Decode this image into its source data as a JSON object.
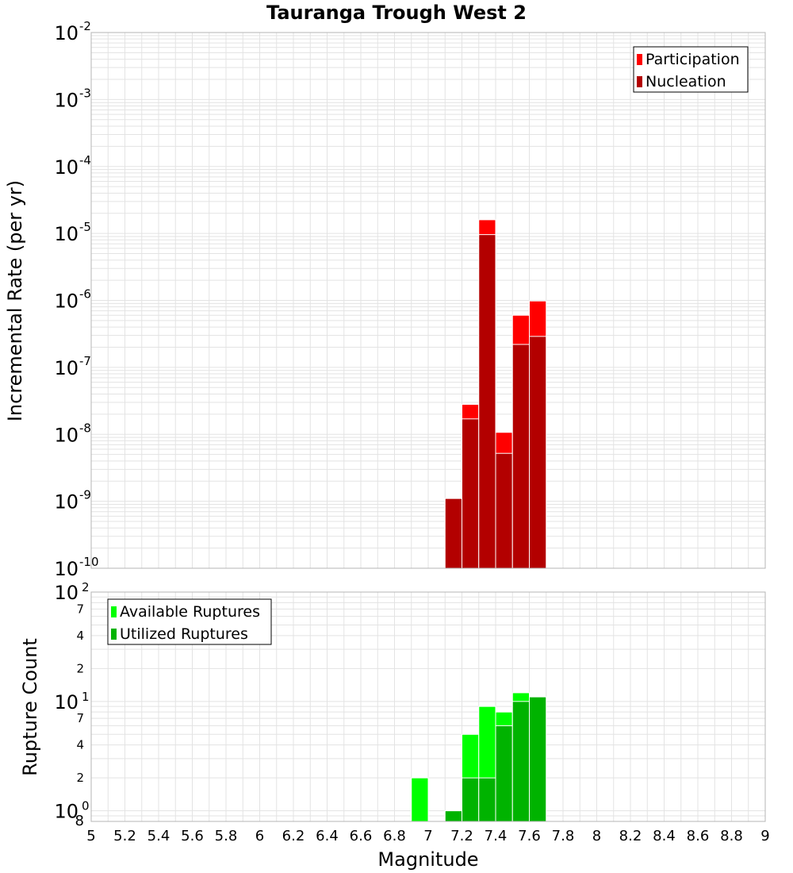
{
  "chart_data": [
    {
      "type": "bar",
      "title": "Tauranga Trough West 2",
      "ylabel": "Incremental Rate (per yr)",
      "xlabel": "",
      "y_scale": "log",
      "ylim": [
        1e-10,
        0.01
      ],
      "xlim": [
        5,
        9
      ],
      "bar_width": 0.1,
      "grid": true,
      "legend_position": "top-right",
      "y_ticks": [
        {
          "base": "10",
          "exp": "-10"
        },
        {
          "base": "10",
          "exp": "-9"
        },
        {
          "base": "10",
          "exp": "-8"
        },
        {
          "base": "10",
          "exp": "-7"
        },
        {
          "base": "10",
          "exp": "-6"
        },
        {
          "base": "10",
          "exp": "-5"
        },
        {
          "base": "10",
          "exp": "-4"
        },
        {
          "base": "10",
          "exp": "-3"
        },
        {
          "base": "10",
          "exp": "-2"
        }
      ],
      "series": [
        {
          "name": "Participation",
          "color": "#ff0000",
          "x": [
            7.15,
            7.25,
            7.35,
            7.45,
            7.55,
            7.65
          ],
          "values": [
            1.1e-09,
            2.8e-08,
            1.6e-05,
            1.07e-08,
            6e-07,
            9.8e-07
          ]
        },
        {
          "name": "Nucleation",
          "color": "#b30000",
          "x": [
            7.15,
            7.25,
            7.35,
            7.45,
            7.55,
            7.65
          ],
          "values": [
            1.1e-09,
            1.7e-08,
            9.6e-06,
            5.2e-09,
            2.2e-07,
            2.9e-07
          ]
        }
      ]
    },
    {
      "type": "bar",
      "title": "",
      "ylabel": "Rupture Count",
      "xlabel": "Magnitude",
      "y_scale": "log",
      "ylim": [
        0.8,
        100
      ],
      "xlim": [
        5,
        9
      ],
      "bar_width": 0.1,
      "grid": true,
      "legend_position": "top-left",
      "x_ticks": [
        "5",
        "5.2",
        "5.4",
        "5.6",
        "5.8",
        "6",
        "6.2",
        "6.4",
        "6.6",
        "6.8",
        "7",
        "7.2",
        "7.4",
        "7.6",
        "7.8",
        "8",
        "8.2",
        "8.4",
        "8.6",
        "8.8",
        "9"
      ],
      "y_major_ticks": [
        {
          "value": 1,
          "base": "10",
          "exp": "0"
        },
        {
          "value": 10,
          "base": "10",
          "exp": "1"
        },
        {
          "value": 100,
          "base": "10",
          "exp": "2"
        }
      ],
      "y_minor_labels": [
        {
          "value": 0.8,
          "label": "8"
        },
        {
          "value": 2,
          "label": "2"
        },
        {
          "value": 4,
          "label": "4"
        },
        {
          "value": 7,
          "label": "7"
        },
        {
          "value": 20,
          "label": "2"
        },
        {
          "value": 40,
          "label": "4"
        },
        {
          "value": 70,
          "label": "7"
        }
      ],
      "series": [
        {
          "name": "Available Ruptures",
          "color": "#00ff00",
          "x": [
            6.95,
            7.15,
            7.25,
            7.35,
            7.45,
            7.55,
            7.65
          ],
          "values": [
            2,
            1,
            5,
            9,
            8,
            12,
            11
          ]
        },
        {
          "name": "Utilized Ruptures",
          "color": "#00b300",
          "x": [
            6.95,
            7.15,
            7.25,
            7.35,
            7.45,
            7.55,
            7.65
          ],
          "values": [
            0,
            1,
            2,
            2,
            6,
            10,
            11
          ]
        }
      ]
    }
  ]
}
